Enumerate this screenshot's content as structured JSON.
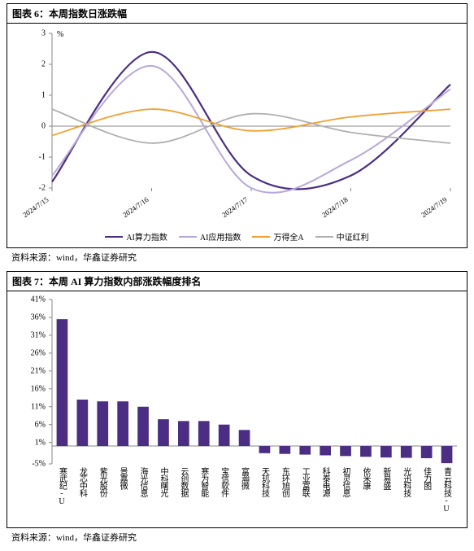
{
  "chart6": {
    "title": "图表 6：本周指数日涨跌幅",
    "type": "line",
    "unit": "%",
    "background_color": "#ffffff",
    "axis_color": "#888888",
    "label_fontsize": 10,
    "ylim": [
      -2,
      3
    ],
    "ytick_step": 1,
    "yticks": [
      -2,
      -1,
      -1,
      0,
      1,
      1,
      2,
      3
    ],
    "x_categories": [
      "2024/7/15",
      "2024/7/16",
      "2024/7/17",
      "2024/7/18",
      "2024/7/19"
    ],
    "series": [
      {
        "name": "AI算力指数",
        "color": "#4b2e83",
        "width": 2.2,
        "values": [
          -1.8,
          2.4,
          -1.6,
          -1.6,
          1.35
        ]
      },
      {
        "name": "AI应用指数",
        "color": "#b8a8d9",
        "width": 2.0,
        "values": [
          -1.6,
          1.95,
          -2.0,
          -1.1,
          1.2
        ]
      },
      {
        "name": "万得全A",
        "color": "#f0a030",
        "width": 1.8,
        "values": [
          -0.3,
          0.55,
          -0.15,
          0.3,
          0.55
        ]
      },
      {
        "name": "中证红利",
        "color": "#b0b0b0",
        "width": 1.8,
        "values": [
          0.55,
          -0.55,
          0.4,
          -0.2,
          -0.55
        ]
      }
    ]
  },
  "chart7": {
    "title": "图表 7：本周 AI 算力指数内部涨跌幅度排名",
    "type": "bar",
    "background_color": "#ffffff",
    "axis_color": "#888888",
    "label_fontsize": 10,
    "ylim": [
      -5,
      41
    ],
    "yticks": [
      -5,
      1,
      6,
      11,
      16,
      21,
      26,
      31,
      36,
      41
    ],
    "bar_color": "#4b2e83",
    "bar_width_ratio": 0.55,
    "categories": [
      "寒武纪-U",
      "龙芯中科",
      "紫光股份",
      "景嘉微",
      "海光信息",
      "中科曙光",
      "云创数据",
      "寒为智能",
      "宝信软件",
      "富瀚微",
      "天玑科技",
      "东环旭创",
      "工业富联",
      "科泰电源",
      "初灵信息",
      "依米康",
      "新易盛",
      "光迅科技",
      "佳力图",
      "青云科技-U"
    ],
    "values": [
      35.5,
      13,
      12.5,
      12.5,
      11,
      7.5,
      7,
      7,
      6,
      4.5,
      -2.0,
      -2.2,
      -2.4,
      -2.6,
      -2.8,
      -3.0,
      -3.2,
      -3.3,
      -3.4,
      -4.8
    ]
  },
  "source_text": "资料来源：wind，华鑫证券研究"
}
